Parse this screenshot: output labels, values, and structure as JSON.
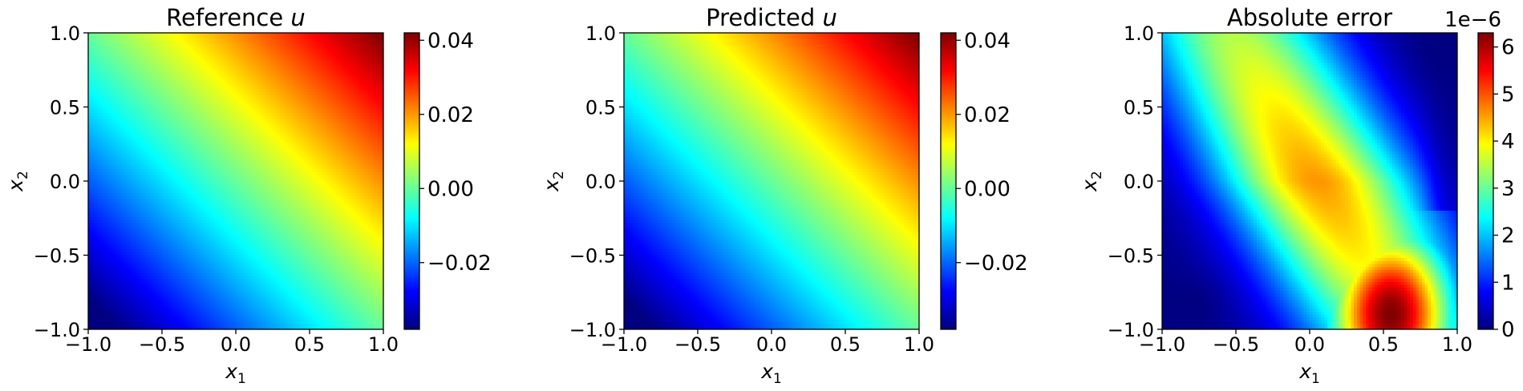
{
  "chart_data": [
    {
      "type": "heatmap",
      "title": "Reference u",
      "title_text": "Reference",
      "title_var": "u",
      "xlabel": "x1",
      "xlabel_var": "x",
      "xlabel_sub": "1",
      "ylabel": "x2",
      "ylabel_var": "x",
      "ylabel_sub": "2",
      "xlim": [
        -1.0,
        1.0
      ],
      "ylim": [
        -1.0,
        1.0
      ],
      "x_ticks": [
        "−1.0",
        "−0.5",
        "0.0",
        "0.5",
        "1.0"
      ],
      "y_ticks": [
        "−1.0",
        "−0.5",
        "0.0",
        "0.5",
        "1.0"
      ],
      "x_tick_values": [
        -1.0,
        -0.5,
        0.0,
        0.5,
        1.0
      ],
      "y_tick_values": [
        -1.0,
        -0.5,
        0.0,
        0.5,
        1.0
      ],
      "colormap": "jet",
      "field": "u(x1,x2) ≈ 0.021·(x1+x2) with slight curvature toward the corners",
      "value_range": [
        -0.038,
        0.042
      ],
      "colorbar_ticks": [
        "−0.02",
        "0.00",
        "0.02",
        "0.04"
      ],
      "colorbar_tick_values": [
        -0.02,
        0.0,
        0.02,
        0.04
      ],
      "colorbar_multiplier": ""
    },
    {
      "type": "heatmap",
      "title": "Predicted u",
      "title_text": "Predicted",
      "title_var": "u",
      "xlabel": "x1",
      "xlabel_var": "x",
      "xlabel_sub": "1",
      "ylabel": "x2",
      "ylabel_var": "x",
      "ylabel_sub": "2",
      "xlim": [
        -1.0,
        1.0
      ],
      "ylim": [
        -1.0,
        1.0
      ],
      "x_ticks": [
        "−1.0",
        "−0.5",
        "0.0",
        "0.5",
        "1.0"
      ],
      "y_ticks": [
        "−1.0",
        "−0.5",
        "0.0",
        "0.5",
        "1.0"
      ],
      "x_tick_values": [
        -1.0,
        -0.5,
        0.0,
        0.5,
        1.0
      ],
      "y_tick_values": [
        -1.0,
        -0.5,
        0.0,
        0.5,
        1.0
      ],
      "colormap": "jet",
      "field": "u(x1,x2) ≈ 0.021·(x1+x2) with slight curvature toward the corners",
      "value_range": [
        -0.038,
        0.042
      ],
      "colorbar_ticks": [
        "−0.02",
        "0.00",
        "0.02",
        "0.04"
      ],
      "colorbar_tick_values": [
        -0.02,
        0.0,
        0.02,
        0.04
      ],
      "colorbar_multiplier": ""
    },
    {
      "type": "heatmap",
      "title": "Absolute error",
      "title_text": "Absolute error",
      "title_var": "",
      "xlabel": "x1",
      "xlabel_var": "x",
      "xlabel_sub": "1",
      "ylabel": "x2",
      "ylabel_var": "x",
      "ylabel_sub": "2",
      "xlim": [
        -1.0,
        1.0
      ],
      "ylim": [
        -1.0,
        1.0
      ],
      "x_ticks": [
        "−1.0",
        "−0.5",
        "0.0",
        "0.5",
        "1.0"
      ],
      "y_ticks": [
        "−1.0",
        "−0.5",
        "0.0",
        "0.5",
        "1.0"
      ],
      "x_tick_values": [
        -1.0,
        -0.5,
        0.0,
        0.5,
        1.0
      ],
      "y_tick_values": [
        -1.0,
        -0.5,
        0.0,
        0.5,
        1.0
      ],
      "colormap": "jet",
      "field": "|error| peaks (~6.3e-6) near x1≈0.55, x2≈-0.9; minima near (-0.8,-0.85) and (0.9,0.9)",
      "value_range": [
        0.0,
        6.3e-06
      ],
      "colorbar_ticks": [
        "0",
        "1",
        "2",
        "3",
        "4",
        "5",
        "6"
      ],
      "colorbar_tick_values": [
        0,
        1,
        2,
        3,
        4,
        5,
        6
      ],
      "colorbar_multiplier": "1e−6"
    }
  ]
}
